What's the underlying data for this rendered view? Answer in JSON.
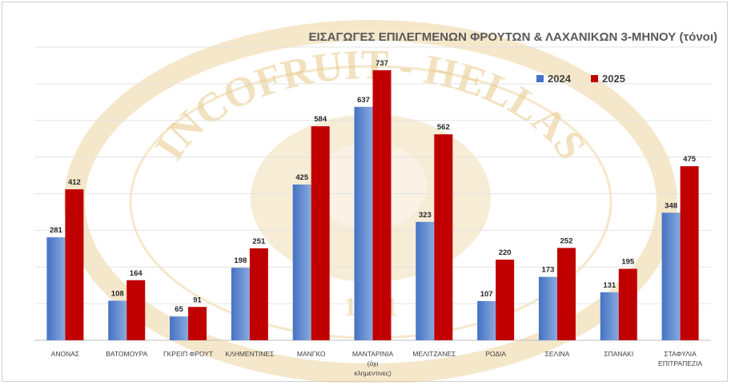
{
  "colors": {
    "series_2024": "#4472c4",
    "series_2024_light": "#8aa9dd",
    "series_2025": "#c00000",
    "watermark": "#e9c98a"
  },
  "watermark": {
    "top_text": "INCOFRUIT - HELLAS",
    "year_text": "1981",
    "logo_icon": "incofruit-seal-icon"
  },
  "chart_data": {
    "type": "bar",
    "title": "ΕΙΣΑΓΩΓΕΣ ΕΠΙΛΕΓΜΕΝΩΝ ΦΡΟΥΤΩΝ & ΛΑΧΑΝΙΚΩΝ  3-ΜΗΝΟΥ (τόνοι)",
    "xlabel": "",
    "ylabel": "",
    "ylim": [
      0,
      800
    ],
    "grid": true,
    "legend_position": "top-right",
    "categories": [
      "ΑΝΟΝΑΣ",
      "ΒΑΤΟΜΟΥΡΑ",
      "ΓΚΡΕΙΠ ΦΡΟΥΤ",
      "ΚΛΗΜΕΝΤΙΝΕΣ",
      "ΜΑΝΓΚΟ",
      "ΜΑΝΤΑΡΙΝΙΑ (όχι κλημεντινες)",
      "ΜΕΛΙΤΖΑΝΕΣ",
      "ΡΟΔΙΑ",
      "ΣΕΛΙΝΑ",
      "ΣΠΑΝΑΚΙ",
      "ΣΤΑΦΥΛΙΑ ΕΠΙΤΡΑΠΕΖΙΑ"
    ],
    "category_lines": [
      [
        "ΑΝΟΝΑΣ"
      ],
      [
        "ΒΑΤΟΜΟΥΡΑ"
      ],
      [
        "ΓΚΡΕΙΠ ΦΡΟΥΤ"
      ],
      [
        "ΚΛΗΜΕΝΤΙΝΕΣ"
      ],
      [
        "ΜΑΝΓΚΟ"
      ],
      [
        "ΜΑΝΤΑΡΙΝΙΑ",
        "(όχι",
        "κλημεντινες)"
      ],
      [
        "ΜΕΛΙΤΖΑΝΕΣ"
      ],
      [
        "ΡΟΔΙΑ"
      ],
      [
        "ΣΕΛΙΝΑ"
      ],
      [
        "ΣΠΑΝΑΚΙ"
      ],
      [
        "ΣΤΑΦΥΛΙΑ",
        "ΕΠΙΤΡΑΠΕΖΙΑ"
      ]
    ],
    "series": [
      {
        "name": "2024",
        "values": [
          281,
          108,
          65,
          198,
          425,
          637,
          323,
          107,
          173,
          131,
          348
        ]
      },
      {
        "name": "2025",
        "values": [
          412,
          164,
          91,
          251,
          584,
          737,
          562,
          220,
          252,
          195,
          475
        ]
      }
    ]
  }
}
